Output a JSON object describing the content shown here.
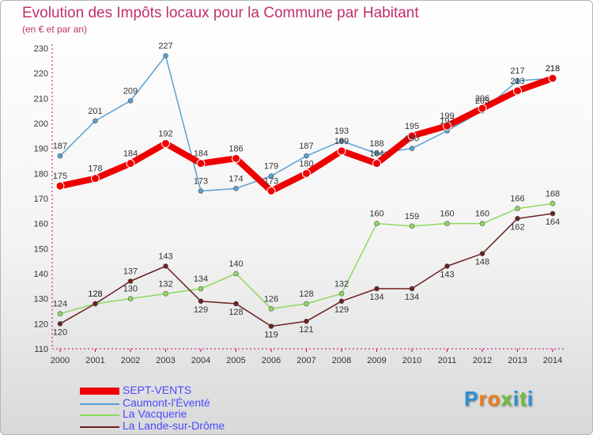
{
  "title": "Evolution des Impôts locaux pour la Commune par Habitant",
  "subtitle": "(en € et par an)",
  "logo_text": "Proxiti",
  "colors": {
    "title": "#c0306a",
    "axis": "#c8006e",
    "legend_text": "#4a4aff"
  },
  "chart_data": {
    "type": "line",
    "title": "Evolution des Impôts locaux pour la Commune par Habitant",
    "subtitle": "(en € et par an)",
    "x": [
      2000,
      2001,
      2002,
      2003,
      2004,
      2005,
      2006,
      2007,
      2008,
      2009,
      2010,
      2011,
      2012,
      2013,
      2014
    ],
    "ylim": [
      110,
      230
    ],
    "yticks": [
      110,
      120,
      130,
      140,
      150,
      160,
      170,
      180,
      190,
      200,
      210,
      220,
      230
    ],
    "grid": false,
    "legend_position": "bottom-left",
    "series": [
      {
        "name": "SEPT-VENTS",
        "color": "#ee0000",
        "values": [
          175,
          178,
          184,
          192,
          184,
          186,
          173,
          180,
          189,
          184,
          195,
          199,
          206,
          213,
          218
        ],
        "labels": [
          "175",
          "178",
          "184",
          "192",
          "184",
          "186",
          "173",
          "180",
          "189",
          "184",
          "195",
          "199",
          "206",
          "213",
          "218"
        ]
      },
      {
        "name": "Caumont-l'Éventé",
        "color": "#5aa0d2",
        "values": [
          187,
          201,
          209,
          227,
          173,
          174,
          179,
          187,
          193,
          188,
          190,
          197,
          205,
          217,
          218
        ],
        "labels": [
          "187",
          "201",
          "209",
          "227",
          "173",
          "174",
          "179",
          "187",
          "193",
          "188",
          "190",
          "197",
          "205",
          "217",
          "218"
        ]
      },
      {
        "name": "La Vacquerie",
        "color": "#8ed95e",
        "values": [
          124,
          128,
          130,
          132,
          134,
          140,
          126,
          128,
          132,
          160,
          159,
          160,
          160,
          166,
          168
        ],
        "labels": [
          "124",
          "128",
          "130",
          "132",
          "134",
          "140",
          "126",
          "128",
          "132",
          "160",
          "159",
          "160",
          "160",
          "166",
          "168"
        ]
      },
      {
        "name": "La Lande-sur-Drôme",
        "color": "#6b1f1f",
        "values": [
          120,
          128,
          137,
          143,
          129,
          128,
          119,
          121,
          129,
          134,
          134,
          143,
          148,
          162,
          164
        ],
        "labels": [
          "120",
          "128",
          "137",
          "143",
          "129",
          "128",
          "119",
          "121",
          "129",
          "134",
          "134",
          "143",
          "148",
          "162",
          "164"
        ]
      }
    ]
  }
}
